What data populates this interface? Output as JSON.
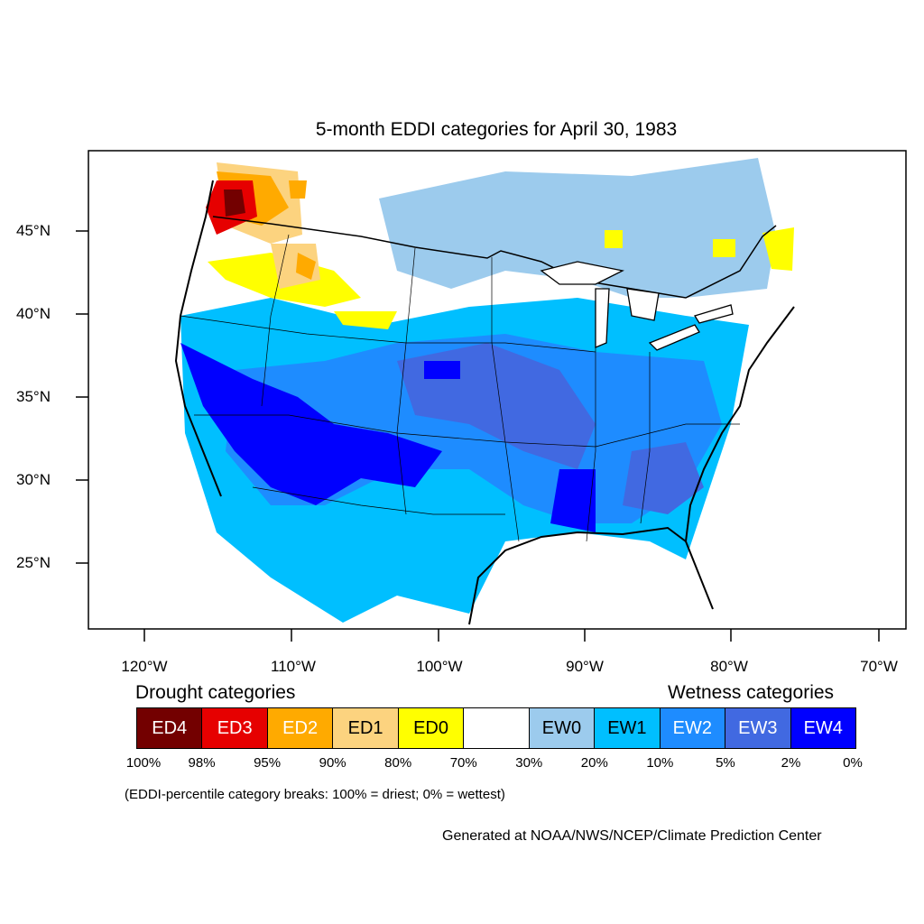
{
  "title": "5-month EDDI categories for April 30, 1983",
  "lat_ticks": [
    "45°N",
    "40°N",
    "35°N",
    "30°N",
    "25°N"
  ],
  "lon_ticks": [
    "120°W",
    "110°W",
    "100°W",
    "90°W",
    "80°W",
    "70°W"
  ],
  "legend": {
    "drought_heading": "Drought categories",
    "wetness_heading": "Wetness categories",
    "categories": [
      {
        "label": "ED4",
        "color": "#730000",
        "text_color": "#ffffff"
      },
      {
        "label": "ED3",
        "color": "#e60000",
        "text_color": "#ffffff"
      },
      {
        "label": "ED2",
        "color": "#ffaa00",
        "text_color": "#ffffff"
      },
      {
        "label": "ED1",
        "color": "#fcd37f",
        "text_color": "#000000"
      },
      {
        "label": "ED0",
        "color": "#ffff00",
        "text_color": "#000000"
      },
      {
        "label": "",
        "color": "#ffffff",
        "text_color": "#000000"
      },
      {
        "label": "EW0",
        "color": "#9ccbed",
        "text_color": "#000000"
      },
      {
        "label": "EW1",
        "color": "#00bfff",
        "text_color": "#000000"
      },
      {
        "label": "EW2",
        "color": "#1e8cff",
        "text_color": "#ffffff"
      },
      {
        "label": "EW3",
        "color": "#4169e1",
        "text_color": "#ffffff"
      },
      {
        "label": "EW4",
        "color": "#0000ff",
        "text_color": "#ffffff"
      }
    ],
    "breaks": [
      "100%",
      "98%",
      "95%",
      "90%",
      "80%",
      "70%",
      "30%",
      "20%",
      "10%",
      "5%",
      "2%",
      "0%"
    ]
  },
  "note": "(EDDI-percentile category breaks: 100% = driest; 0% = wettest)",
  "credit": "Generated at NOAA/NWS/NCEP/Climate Prediction Center"
}
